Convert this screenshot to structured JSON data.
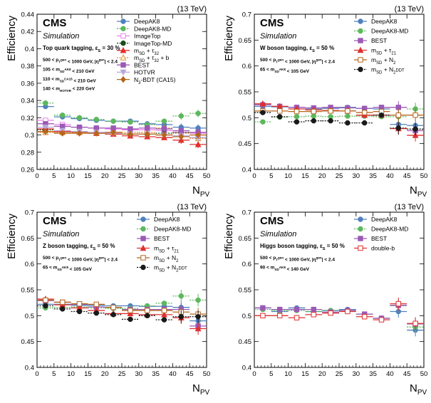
{
  "figure": {
    "xlabel": "N",
    "xlabel_sub": "PV",
    "ylabel": "Efficiency",
    "energy_label": "(13 TeV)",
    "experiment": "CMS",
    "simulation_label": "Simulation"
  },
  "chart_data": [
    {
      "type": "scatter",
      "title_left": "CMS",
      "subtitle": "Simulation",
      "energy": "(13 TeV)",
      "xlabel": "N_PV",
      "ylabel": "Efficiency",
      "xlim": [
        0,
        50
      ],
      "ylim": [
        0.26,
        0.44
      ],
      "xticks": [
        "0",
        "5",
        "10",
        "15",
        "20",
        "25",
        "30",
        "35",
        "40",
        "45",
        "50"
      ],
      "yticks": [
        "0.26",
        "0.28",
        "0.3",
        "0.32",
        "0.34",
        "0.36",
        "0.38",
        "0.4",
        "0.42",
        "0.44"
      ],
      "tag_line": "Top quark tagging,  ε_S = 30 %",
      "cuts": [
        "500 < p_T^gen < 1000 GeV, |η^gen| < 2.4",
        "105 < m_SD^AK8 < 210 GeV",
        "110 < m_SD^CA15 < 210 GeV",
        "140 < m_HOTVR < 220 GeV"
      ],
      "x": [
        2.5,
        7.5,
        12.5,
        17.5,
        22.5,
        27.5,
        32.5,
        37.5,
        42.5,
        47.5
      ],
      "series": [
        {
          "name": "DeepAK8",
          "color": "#4f81bd",
          "marker": "circle",
          "dash": false,
          "values": [
            0.333,
            0.321,
            0.319,
            0.317,
            0.316,
            0.316,
            0.313,
            0.312,
            0.309,
            0.308
          ]
        },
        {
          "name": "DeepAK8-MD",
          "color": "#5db85d",
          "marker": "circle",
          "dash": true,
          "values": [
            0.337,
            0.323,
            0.32,
            0.318,
            0.316,
            0.315,
            0.312,
            0.316,
            0.322,
            0.325
          ]
        },
        {
          "name": "ImageTop",
          "color": "#ee82ee",
          "marker": "square-open",
          "dash": false,
          "values": [
            0.317,
            0.312,
            0.309,
            0.308,
            0.307,
            0.306,
            0.306,
            0.305,
            0.303,
            0.302
          ]
        },
        {
          "name": "ImageTop-MD",
          "color": "#1a4d1a",
          "marker": "circle",
          "dash": true,
          "values": [
            0.306,
            0.303,
            0.303,
            0.302,
            0.302,
            0.301,
            0.301,
            0.302,
            0.303,
            0.297
          ]
        },
        {
          "name": "m_SD + τ_32",
          "color": "#e03030",
          "marker": "triangle",
          "dash": false,
          "values": [
            0.307,
            0.304,
            0.303,
            0.302,
            0.301,
            0.299,
            0.298,
            0.297,
            0.294,
            0.289
          ]
        },
        {
          "name": "m_SD + τ_32 + b",
          "color": "#e08a2c",
          "marker": "triangle-open",
          "dash": true,
          "values": [
            0.303,
            0.303,
            0.303,
            0.303,
            0.303,
            0.303,
            0.303,
            0.308,
            0.302,
            0.296
          ]
        },
        {
          "name": "BEST",
          "color": "#9b59b6",
          "marker": "square",
          "dash": false,
          "values": [
            0.313,
            0.31,
            0.309,
            0.308,
            0.308,
            0.307,
            0.308,
            0.307,
            0.305,
            0.303
          ]
        },
        {
          "name": "HOTVR",
          "color": "#b8a6d9",
          "marker": "triangle-down",
          "dash": false,
          "values": [
            0.309,
            0.305,
            0.304,
            0.303,
            0.302,
            0.301,
            0.301,
            0.3,
            0.299,
            0.297
          ]
        },
        {
          "name": "N_3-BDT (CA15)",
          "color": "#b5651d",
          "marker": "diamond",
          "dash": false,
          "values": [
            0.304,
            0.302,
            0.302,
            0.302,
            0.303,
            0.301,
            0.301,
            0.3,
            0.298,
            0.3
          ]
        }
      ]
    },
    {
      "type": "scatter",
      "title_left": "CMS",
      "subtitle": "Simulation",
      "energy": "(13 TeV)",
      "xlabel": "N_PV",
      "ylabel": "Efficiency",
      "xlim": [
        0,
        50
      ],
      "ylim": [
        0.4,
        0.7
      ],
      "xticks": [
        "0",
        "5",
        "10",
        "15",
        "20",
        "25",
        "30",
        "35",
        "40",
        "45",
        "50"
      ],
      "yticks": [
        "0.4",
        "0.45",
        "0.5",
        "0.55",
        "0.6",
        "0.65",
        "0.7"
      ],
      "tag_line": "W boson tagging,  ε_S = 50 %",
      "cuts": [
        "500 < p_T^gen < 1000 GeV, |η^gen| < 2.4",
        "65 < m_SD^AK8 < 105 GeV"
      ],
      "x": [
        2.5,
        7.5,
        12.5,
        17.5,
        22.5,
        27.5,
        32.5,
        37.5,
        42.5,
        47.5
      ],
      "series": [
        {
          "name": "DeepAK8",
          "color": "#4f81bd",
          "marker": "circle",
          "dash": false,
          "values": [
            0.522,
            0.521,
            0.52,
            0.517,
            0.518,
            0.52,
            0.518,
            0.517,
            0.487,
            0.485
          ]
        },
        {
          "name": "DeepAK8-MD",
          "color": "#5db85d",
          "marker": "circle",
          "dash": true,
          "values": [
            0.492,
            0.501,
            0.502,
            0.503,
            0.502,
            0.503,
            0.503,
            0.502,
            0.502,
            0.517
          ]
        },
        {
          "name": "BEST",
          "color": "#9b59b6",
          "marker": "square",
          "dash": false,
          "values": [
            0.525,
            0.522,
            0.52,
            0.519,
            0.52,
            0.519,
            0.518,
            0.52,
            0.52,
            0.475
          ]
        },
        {
          "name": "m_SD + τ_21",
          "color": "#e03030",
          "marker": "triangle",
          "dash": false,
          "values": [
            0.527,
            0.522,
            0.517,
            0.515,
            0.514,
            0.513,
            0.505,
            0.505,
            0.479,
            0.466
          ]
        },
        {
          "name": "m_SD + N_2",
          "color": "#b5651d",
          "marker": "square-open",
          "dash": false,
          "values": [
            0.513,
            0.513,
            0.512,
            0.512,
            0.513,
            0.513,
            0.51,
            0.512,
            0.505,
            0.505
          ]
        },
        {
          "name": "m_SD + N_2^DDT",
          "color": "#1a1a1a",
          "marker": "circle",
          "dash": true,
          "values": [
            0.51,
            0.502,
            0.492,
            0.494,
            0.494,
            0.49,
            0.49,
            0.505,
            0.48,
            0.478
          ]
        }
      ]
    },
    {
      "type": "scatter",
      "title_left": "CMS",
      "subtitle": "Simulation",
      "energy": "(13 TeV)",
      "xlabel": "N_PV",
      "ylabel": "Efficiency",
      "xlim": [
        0,
        50
      ],
      "ylim": [
        0.4,
        0.7
      ],
      "xticks": [
        "0",
        "5",
        "10",
        "15",
        "20",
        "25",
        "30",
        "35",
        "40",
        "45",
        "50"
      ],
      "yticks": [
        "0.4",
        "0.45",
        "0.5",
        "0.55",
        "0.6",
        "0.65",
        "0.7"
      ],
      "tag_line": "Z boson tagging,  ε_S = 50 %",
      "cuts": [
        "500 < p_T^gen < 1000 GeV, |η^gen| < 2.4",
        "65 < m_SD^AK8 < 105 GeV"
      ],
      "x": [
        2.5,
        7.5,
        12.5,
        17.5,
        22.5,
        27.5,
        32.5,
        37.5,
        42.5,
        47.5
      ],
      "series": [
        {
          "name": "DeepAK8",
          "color": "#4f81bd",
          "marker": "circle",
          "dash": false,
          "values": [
            0.522,
            0.522,
            0.52,
            0.52,
            0.519,
            0.519,
            0.518,
            0.518,
            0.516,
            0.49
          ]
        },
        {
          "name": "DeepAK8-MD",
          "color": "#5db85d",
          "marker": "circle",
          "dash": true,
          "values": [
            0.515,
            0.516,
            0.517,
            0.515,
            0.514,
            0.514,
            0.519,
            0.524,
            0.538,
            0.53
          ]
        },
        {
          "name": "BEST",
          "color": "#9b59b6",
          "marker": "square",
          "dash": false,
          "values": [
            0.529,
            0.526,
            0.522,
            0.517,
            0.516,
            0.512,
            0.512,
            0.512,
            0.512,
            0.48
          ]
        },
        {
          "name": "m_SD + τ_21",
          "color": "#e03030",
          "marker": "triangle",
          "dash": false,
          "values": [
            0.532,
            0.521,
            0.515,
            0.51,
            0.504,
            0.504,
            0.502,
            0.502,
            0.496,
            0.475
          ]
        },
        {
          "name": "m_SD + N_2",
          "color": "#b5651d",
          "marker": "square-open",
          "dash": false,
          "values": [
            0.53,
            0.526,
            0.523,
            0.522,
            0.516,
            0.51,
            0.51,
            0.51,
            0.507,
            0.503
          ]
        },
        {
          "name": "m_SD + N_2^DDT",
          "color": "#1a1a1a",
          "marker": "circle",
          "dash": true,
          "values": [
            0.519,
            0.513,
            0.508,
            0.505,
            0.502,
            0.493,
            0.5,
            0.492,
            0.498,
            0.498
          ]
        }
      ]
    },
    {
      "type": "scatter",
      "title_left": "CMS",
      "subtitle": "Simulation",
      "energy": "(13 TeV)",
      "xlabel": "N_PV",
      "ylabel": "Efficiency",
      "xlim": [
        0,
        50
      ],
      "ylim": [
        0.4,
        0.7
      ],
      "xticks": [
        "0",
        "5",
        "10",
        "15",
        "20",
        "25",
        "30",
        "35",
        "40",
        "45",
        "50"
      ],
      "yticks": [
        "0.4",
        "0.45",
        "0.5",
        "0.55",
        "0.6",
        "0.65",
        "0.7"
      ],
      "tag_line": "Higgs boson tagging,  ε_S = 50 %",
      "cuts": [
        "500 < p_T^gen < 1000 GeV, |η^gen| < 2.4",
        "90 < m_SD^AK8 < 140 GeV"
      ],
      "x": [
        2.5,
        7.5,
        12.5,
        17.5,
        22.5,
        27.5,
        32.5,
        37.5,
        42.5,
        47.5
      ],
      "series": [
        {
          "name": "DeepAK8",
          "color": "#4f81bd",
          "marker": "circle",
          "dash": false,
          "values": [
            0.515,
            0.508,
            0.515,
            0.508,
            0.51,
            0.512,
            0.503,
            0.495,
            0.508,
            0.472
          ]
        },
        {
          "name": "DeepAK8-MD",
          "color": "#5db85d",
          "marker": "circle",
          "dash": true,
          "values": [
            0.512,
            0.51,
            0.51,
            0.508,
            0.51,
            0.51,
            0.503,
            0.495,
            0.519,
            0.478
          ]
        },
        {
          "name": "BEST",
          "color": "#9b59b6",
          "marker": "square",
          "dash": false,
          "values": [
            0.515,
            0.512,
            0.512,
            0.512,
            0.507,
            0.51,
            0.503,
            0.495,
            0.52,
            0.484
          ]
        },
        {
          "name": "double-b",
          "color": "#e03030",
          "marker": "square-open",
          "dash": false,
          "values": [
            0.5,
            0.5,
            0.496,
            0.502,
            0.505,
            0.508,
            0.498,
            0.492,
            0.523,
            0.485
          ]
        }
      ]
    }
  ]
}
